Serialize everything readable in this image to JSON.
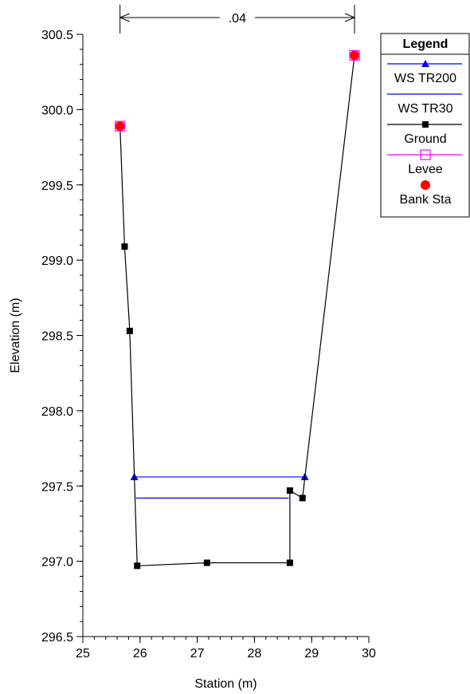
{
  "chart_data": {
    "type": "line",
    "title": "",
    "xlabel": "Station (m)",
    "ylabel": "Elevation (m)",
    "xlim": [
      25,
      30
    ],
    "ylim": [
      296.5,
      300.5
    ],
    "x_ticks": [
      25,
      26,
      27,
      28,
      29,
      30
    ],
    "y_ticks": [
      296.5,
      297.0,
      297.5,
      298.0,
      298.5,
      299.0,
      299.5,
      300.0,
      300.5
    ],
    "grid": false,
    "legend_position": "right",
    "annotation": {
      "label": ".04",
      "x_start": 25.65,
      "x_end": 29.75
    },
    "legend": {
      "title": "Legend",
      "entries": [
        "WS TR200",
        "WS TR30",
        "Ground",
        "Levee",
        "Bank Sta"
      ]
    },
    "series": [
      {
        "name": "WS TR200",
        "color": "#0000ff",
        "marker": "triangle",
        "x": [
          25.9,
          28.88
        ],
        "y": [
          297.56,
          297.56
        ]
      },
      {
        "name": "WS TR30",
        "color": "#0000ff",
        "marker": "none",
        "x": [
          25.93,
          28.6
        ],
        "y": [
          297.42,
          297.42
        ]
      },
      {
        "name": "Ground",
        "color": "#000000",
        "marker": "square",
        "x": [
          25.65,
          25.73,
          25.82,
          25.95,
          27.17,
          28.62,
          28.62,
          28.84,
          29.75
        ],
        "y": [
          299.89,
          299.09,
          298.53,
          296.97,
          296.99,
          296.99,
          297.47,
          297.42,
          300.36
        ]
      },
      {
        "name": "Levee",
        "color": "#ff00ff",
        "marker": "open-square",
        "x": [
          25.65,
          29.75
        ],
        "y": [
          299.89,
          300.36
        ]
      },
      {
        "name": "Bank Sta",
        "color": "#ff0000",
        "marker": "circle",
        "x": [
          25.65,
          29.75
        ],
        "y": [
          299.89,
          300.36
        ]
      }
    ]
  }
}
